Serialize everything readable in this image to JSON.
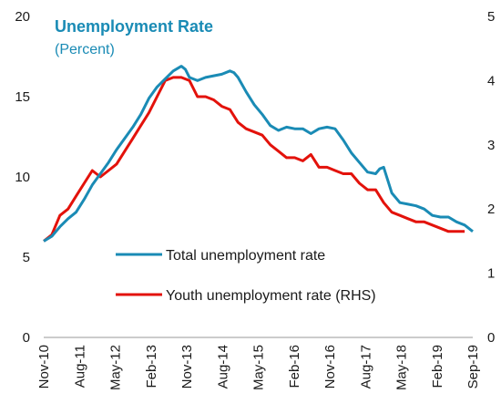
{
  "chart_data": {
    "type": "line",
    "title": "Unemployment Rate",
    "subtitle": "(Percent)",
    "x_tick_labels": [
      "Nov-10",
      "Aug-11",
      "May-12",
      "Feb-13",
      "Nov-13",
      "Aug-14",
      "May-15",
      "Feb-16",
      "Nov-16",
      "Aug-17",
      "May-18",
      "Feb-19",
      "Sep-19"
    ],
    "x_range": [
      "2010-11",
      "2019-09"
    ],
    "y_left": {
      "ticks": [
        "0",
        "5",
        "10",
        "15",
        "20"
      ],
      "range": [
        0,
        20
      ]
    },
    "y_right": {
      "ticks": [
        "0",
        "1",
        "2",
        "3",
        "4",
        "5"
      ],
      "range": [
        0,
        5
      ]
    },
    "grid": false,
    "legend_position": "bottom-center",
    "series": [
      {
        "name": "Total unemployment rate",
        "axis": "left",
        "color": "#1a8bb5",
        "x": [
          "2010-11",
          "2011-01",
          "2011-03",
          "2011-05",
          "2011-07",
          "2011-09",
          "2011-11",
          "2012-01",
          "2012-03",
          "2012-05",
          "2012-07",
          "2012-09",
          "2012-11",
          "2013-01",
          "2013-03",
          "2013-05",
          "2013-07",
          "2013-09",
          "2013-10",
          "2013-11",
          "2014-01",
          "2014-03",
          "2014-05",
          "2014-07",
          "2014-09",
          "2014-10",
          "2014-11",
          "2015-01",
          "2015-03",
          "2015-05",
          "2015-07",
          "2015-09",
          "2015-11",
          "2016-01",
          "2016-03",
          "2016-05",
          "2016-07",
          "2016-09",
          "2016-11",
          "2017-01",
          "2017-03",
          "2017-05",
          "2017-07",
          "2017-09",
          "2017-10",
          "2017-11",
          "2018-01",
          "2018-03",
          "2018-05",
          "2018-07",
          "2018-09",
          "2018-11",
          "2019-01",
          "2019-03",
          "2019-05",
          "2019-07",
          "2019-09"
        ],
        "y": [
          6.0,
          6.3,
          6.9,
          7.4,
          7.8,
          8.6,
          9.5,
          10.2,
          10.9,
          11.7,
          12.4,
          13.1,
          13.9,
          14.9,
          15.6,
          16.1,
          16.6,
          16.9,
          16.7,
          16.2,
          16.0,
          16.2,
          16.3,
          16.4,
          16.6,
          16.5,
          16.2,
          15.3,
          14.5,
          13.9,
          13.2,
          12.9,
          13.1,
          13.0,
          13.0,
          12.7,
          13.0,
          13.1,
          13.0,
          12.3,
          11.5,
          10.9,
          10.3,
          10.2,
          10.5,
          10.6,
          9.0,
          8.4,
          8.3,
          8.2,
          8.0,
          7.6,
          7.5,
          7.5,
          7.2,
          7.0,
          6.6
        ]
      },
      {
        "name": "Youth unemployment rate (RHS)",
        "axis": "right",
        "color": "#e3120b",
        "x": [
          "2010-11",
          "2011-01",
          "2011-03",
          "2011-05",
          "2011-07",
          "2011-09",
          "2011-11",
          "2012-01",
          "2012-03",
          "2012-05",
          "2012-07",
          "2012-09",
          "2012-11",
          "2013-01",
          "2013-03",
          "2013-05",
          "2013-07",
          "2013-09",
          "2013-11",
          "2014-01",
          "2014-03",
          "2014-05",
          "2014-07",
          "2014-09",
          "2014-11",
          "2015-01",
          "2015-03",
          "2015-05",
          "2015-07",
          "2015-09",
          "2015-11",
          "2016-01",
          "2016-03",
          "2016-05",
          "2016-07",
          "2016-09",
          "2016-11",
          "2017-01",
          "2017-03",
          "2017-05",
          "2017-07",
          "2017-09",
          "2017-11",
          "2018-01",
          "2018-03",
          "2018-05",
          "2018-07",
          "2018-09",
          "2018-11",
          "2019-01",
          "2019-03",
          "2019-05",
          "2019-07"
        ],
        "y": [
          1.5,
          1.6,
          1.9,
          2.0,
          2.2,
          2.4,
          2.6,
          2.5,
          2.6,
          2.7,
          2.9,
          3.1,
          3.3,
          3.5,
          3.75,
          4.0,
          4.05,
          4.05,
          4.0,
          3.75,
          3.75,
          3.7,
          3.6,
          3.55,
          3.35,
          3.25,
          3.2,
          3.15,
          3.0,
          2.9,
          2.8,
          2.8,
          2.75,
          2.85,
          2.65,
          2.65,
          2.6,
          2.55,
          2.55,
          2.4,
          2.3,
          2.3,
          2.1,
          1.95,
          1.9,
          1.85,
          1.8,
          1.8,
          1.75,
          1.7,
          1.65,
          1.65,
          1.65
        ]
      }
    ]
  }
}
